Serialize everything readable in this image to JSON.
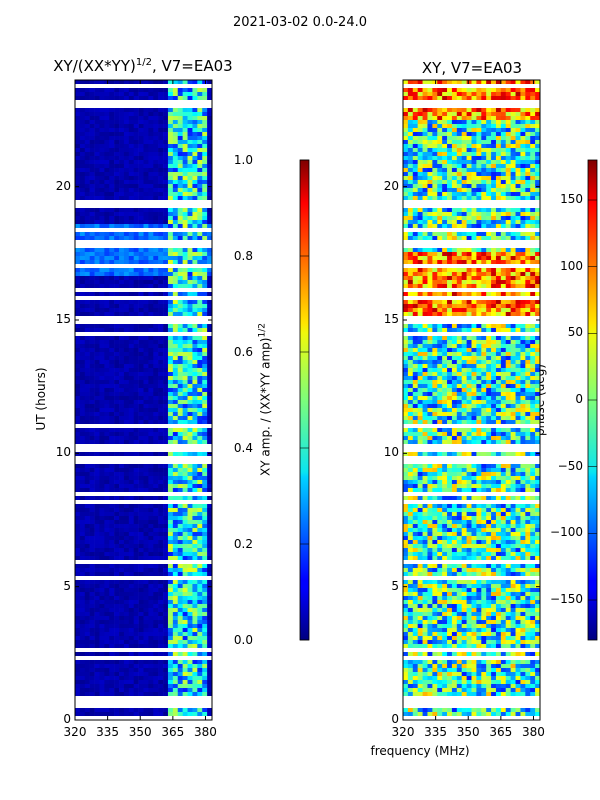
{
  "figure_title": "2021-03-02 0.0-24.0",
  "chart_data": [
    {
      "type": "heatmap",
      "title_main": "XY/(XX*YY)",
      "title_sup": "1/2",
      "title_tail": ", V7=EA03",
      "xlabel": "",
      "ylabel": "UT (hours)",
      "xlim": [
        320,
        383
      ],
      "ylim": [
        0,
        24
      ],
      "xticks": [
        320,
        335,
        350,
        365,
        380
      ],
      "yticks": [
        0,
        5,
        10,
        15,
        20
      ],
      "colorbar": {
        "label_main": "XY amp. / (XX*YY amp)",
        "label_sup": "1/2",
        "range": [
          0.0,
          1.0
        ],
        "ticks": [
          "0.0",
          "0.2",
          "0.4",
          "0.6",
          "0.8",
          "1.0"
        ],
        "colormap": "jet"
      }
    },
    {
      "type": "heatmap",
      "title": "XY, V7=EA03",
      "xlabel": "frequency (MHz)",
      "ylabel": "",
      "xlim": [
        320,
        383
      ],
      "ylim": [
        0,
        24
      ],
      "xticks": [
        320,
        335,
        350,
        365,
        380
      ],
      "yticks": [
        0,
        5,
        10,
        15,
        20
      ],
      "colorbar": {
        "label": "phase (deg)",
        "range": [
          -180,
          180
        ],
        "ticks": [
          "−150",
          "−100",
          "−50",
          "0",
          "50",
          "100",
          "150"
        ],
        "colormap": "jet"
      }
    }
  ],
  "xlabel_shared": "frequency (MHz)",
  "colors": {
    "jet_low": "#00007f",
    "jet_high": "#7f0000",
    "gap": "#ffffff"
  }
}
